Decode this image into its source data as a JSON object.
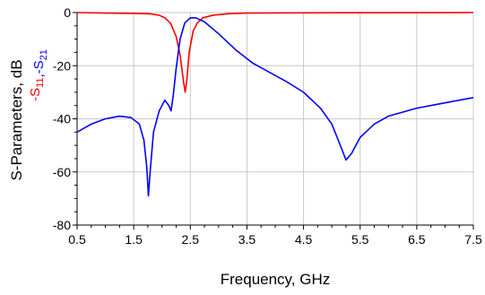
{
  "chart_data": {
    "type": "line",
    "title": "",
    "xlabel": "Frequency, GHz",
    "ylabel": "S-Parameters, dB",
    "legend_label_parts": [
      {
        "text": "-S",
        "sub": "11",
        "color": "#ff0000"
      },
      {
        "text": ",",
        "sub": "",
        "color": "#0000ff"
      },
      {
        "text": "-S",
        "sub": "21",
        "color": "#0000ff"
      }
    ],
    "xlim": [
      0.5,
      7.5
    ],
    "ylim": [
      -80,
      0
    ],
    "x_ticks": [
      "0.5",
      "1.5",
      "2.5",
      "3.5",
      "4.5",
      "5.5",
      "6.5",
      "7.5"
    ],
    "y_ticks": [
      "0",
      "-20",
      "-40",
      "-60",
      "-80"
    ],
    "grid": true,
    "series": [
      {
        "name": "-S11",
        "color": "#ff0000",
        "points": [
          [
            0.5,
            0
          ],
          [
            1.0,
            -0.2
          ],
          [
            1.5,
            -0.3
          ],
          [
            1.8,
            -0.5
          ],
          [
            1.95,
            -1.0
          ],
          [
            2.05,
            -2.0
          ],
          [
            2.15,
            -4.0
          ],
          [
            2.25,
            -9.0
          ],
          [
            2.32,
            -16.0
          ],
          [
            2.38,
            -26.0
          ],
          [
            2.41,
            -30.0
          ],
          [
            2.44,
            -25.0
          ],
          [
            2.48,
            -15.0
          ],
          [
            2.55,
            -7.0
          ],
          [
            2.62,
            -4.0
          ],
          [
            2.72,
            -2.0
          ],
          [
            2.9,
            -1.0
          ],
          [
            3.2,
            -0.4
          ],
          [
            3.5,
            -0.2
          ],
          [
            4.5,
            -0.1
          ],
          [
            7.5,
            0
          ]
        ]
      },
      {
        "name": "-S21",
        "color": "#0000ff",
        "points": [
          [
            0.5,
            -45.0
          ],
          [
            0.75,
            -42.0
          ],
          [
            1.0,
            -40.0
          ],
          [
            1.25,
            -39.0
          ],
          [
            1.45,
            -39.5
          ],
          [
            1.6,
            -42.0
          ],
          [
            1.68,
            -48.0
          ],
          [
            1.73,
            -58.0
          ],
          [
            1.76,
            -69.0
          ],
          [
            1.79,
            -60.0
          ],
          [
            1.85,
            -45.0
          ],
          [
            1.95,
            -37.0
          ],
          [
            2.05,
            -33.0
          ],
          [
            2.12,
            -35.0
          ],
          [
            2.16,
            -37.0
          ],
          [
            2.2,
            -31.0
          ],
          [
            2.25,
            -21.0
          ],
          [
            2.32,
            -10.0
          ],
          [
            2.4,
            -4.0
          ],
          [
            2.5,
            -2.0
          ],
          [
            2.6,
            -2.0
          ],
          [
            2.75,
            -3.5
          ],
          [
            3.0,
            -8.0
          ],
          [
            3.3,
            -14.0
          ],
          [
            3.6,
            -19.0
          ],
          [
            3.9,
            -22.5
          ],
          [
            4.2,
            -26.0
          ],
          [
            4.5,
            -30.0
          ],
          [
            4.8,
            -36.0
          ],
          [
            5.0,
            -42.0
          ],
          [
            5.15,
            -50.0
          ],
          [
            5.25,
            -55.5
          ],
          [
            5.35,
            -53.0
          ],
          [
            5.5,
            -47.0
          ],
          [
            5.75,
            -42.0
          ],
          [
            6.0,
            -39.0
          ],
          [
            6.5,
            -36.0
          ],
          [
            7.0,
            -34.0
          ],
          [
            7.5,
            -32.0
          ]
        ]
      }
    ]
  }
}
